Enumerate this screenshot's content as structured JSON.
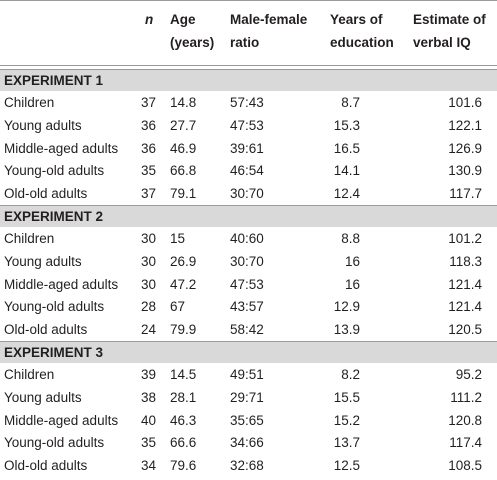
{
  "table": {
    "columns": [
      {
        "lines": [
          "n"
        ]
      },
      {
        "lines": [
          "Age",
          "(years)"
        ]
      },
      {
        "lines": [
          "Male-female",
          "ratio"
        ]
      },
      {
        "lines": [
          "Years of",
          "education"
        ]
      },
      {
        "lines": [
          "Estimate of",
          "verbal IQ"
        ]
      }
    ],
    "sections": [
      {
        "title": "EXPERIMENT 1",
        "rows": [
          [
            "Children",
            "37",
            "14.8",
            "57:43",
            "8.7",
            "101.6"
          ],
          [
            "Young adults",
            "36",
            "27.7",
            "47:53",
            "15.3",
            "122.1"
          ],
          [
            "Middle-aged adults",
            "36",
            "46.9",
            "39:61",
            "16.5",
            "126.9"
          ],
          [
            "Young-old adults",
            "35",
            "66.8",
            "46:54",
            "14.1",
            "130.9"
          ],
          [
            "Old-old adults",
            "37",
            "79.1",
            "30:70",
            "12.4",
            "117.7"
          ]
        ]
      },
      {
        "title": "EXPERIMENT 2",
        "rows": [
          [
            "Children",
            "30",
            "15",
            "40:60",
            "8.8",
            "101.2"
          ],
          [
            "Young adults",
            "30",
            "26.9",
            "30:70",
            "16",
            "118.3"
          ],
          [
            "Middle-aged adults",
            "30",
            "47.2",
            "47:53",
            "16",
            "121.4"
          ],
          [
            "Young-old adults",
            "28",
            "67",
            "43:57",
            "12.9",
            "121.4"
          ],
          [
            "Old-old adults",
            "24",
            "79.9",
            "58:42",
            "13.9",
            "120.5"
          ]
        ]
      },
      {
        "title": "EXPERIMENT 3",
        "rows": [
          [
            "Children",
            "39",
            "14.5",
            "49:51",
            "8.2",
            "95.2"
          ],
          [
            "Young adults",
            "38",
            "28.1",
            "29:71",
            "15.5",
            "111.2"
          ],
          [
            "Middle-aged adults",
            "40",
            "46.3",
            "35:65",
            "15.2",
            "120.8"
          ],
          [
            "Young-old adults",
            "35",
            "66.6",
            "34:66",
            "13.7",
            "117.4"
          ],
          [
            "Old-old adults",
            "34",
            "79.6",
            "32:68",
            "12.5",
            "108.5"
          ]
        ]
      }
    ]
  }
}
